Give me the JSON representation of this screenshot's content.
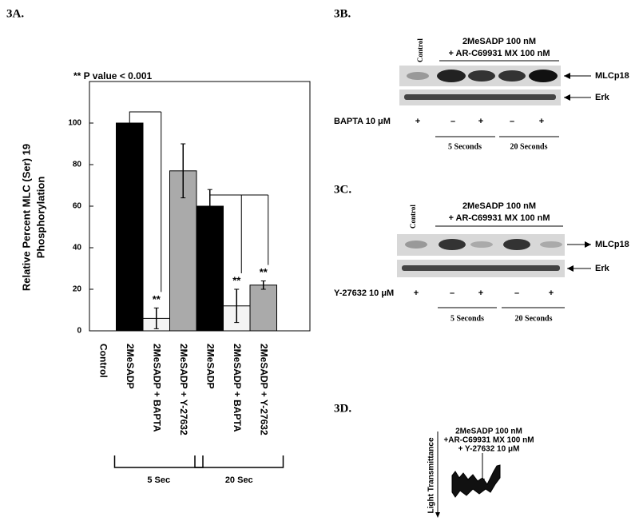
{
  "chart_data": {
    "type": "bar",
    "label": "3A.",
    "annotation": "** P value < 0.001",
    "y_label": [
      "Relative Percent MLC (Ser) 19",
      "Phosphorylation"
    ],
    "categories": [
      "Control",
      "2MeSADP",
      "2MeSADP + BAPTA",
      "2MeSADP + Y-27632",
      "2MeSADP",
      "2MeSADP + BAPTA",
      "2MeSADP + Y-27632"
    ],
    "values": [
      0,
      100,
      6,
      77,
      60,
      12,
      22
    ],
    "errors": [
      0,
      0,
      5,
      13,
      8,
      8,
      2
    ],
    "colors": [
      "#000000",
      "#000000",
      "#f4f4f4",
      "#aaaaaa",
      "#000000",
      "#f4f4f4",
      "#aaaaaa"
    ],
    "ylim": [
      0,
      120
    ],
    "yticks": [
      0,
      20,
      40,
      60,
      80,
      100
    ],
    "significance": [
      {
        "category": 2,
        "text": "**",
        "versus": 1
      },
      {
        "category": 5,
        "text": "**",
        "versus": 4
      },
      {
        "category": 6,
        "text": "**",
        "versus": 4
      }
    ],
    "groups": [
      {
        "label": "5 Sec",
        "categories": [
          1,
          3
        ]
      },
      {
        "label": "20 Sec",
        "categories": [
          4,
          6
        ]
      }
    ]
  },
  "blot_b": {
    "label": "3B.",
    "control": "Control",
    "treatment": [
      "2MeSADP 100 nM",
      "+ AR-C69931 MX 100 nM"
    ],
    "rows": [
      "MLCp18",
      "Erk"
    ],
    "condition": "BAPTA 10 μM",
    "signs": [
      "+",
      "–",
      "+",
      "–",
      "+"
    ],
    "groups": [
      "5 Seconds",
      "20 Seconds"
    ]
  },
  "blot_c": {
    "label": "3C.",
    "control": "Control",
    "treatment": [
      "2MeSADP 100 nM",
      "+ AR-C69931 MX 100 nM"
    ],
    "rows": [
      "MLCp18",
      "Erk"
    ],
    "condition": "Y-27632 10 μM",
    "signs": [
      "+",
      "–",
      "+",
      "–",
      "+"
    ],
    "groups": [
      "5 Seconds",
      "20 Seconds"
    ]
  },
  "trace_d": {
    "label": "3D.",
    "treatment": [
      "2MeSADP 100 nM",
      "+AR-C69931 MX 100 nM",
      "+ Y-27632 10 μM"
    ],
    "axis_label": "Light Transmittance"
  }
}
